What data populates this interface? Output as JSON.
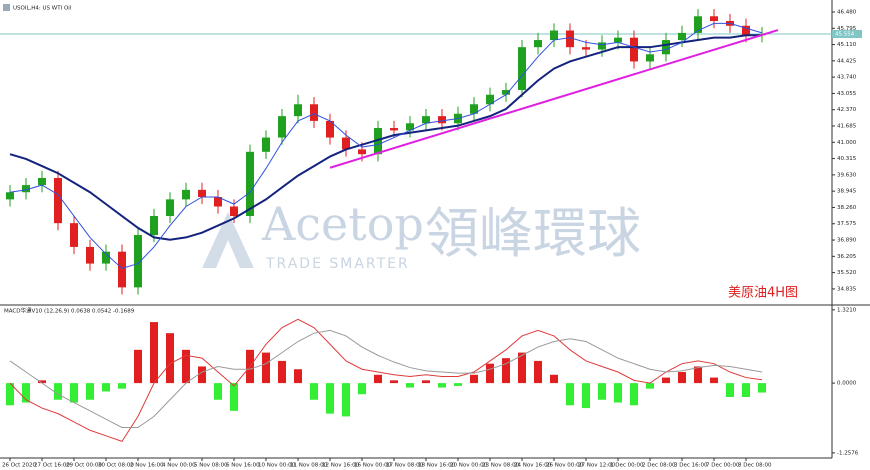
{
  "chart_data": [
    {
      "type": "candlestick",
      "title": "USOIL,H4: US WTI Oil",
      "open": [
        38.6,
        38.9,
        39.2,
        39.5,
        37.6,
        36.6,
        35.9,
        36.4,
        34.9,
        37.1,
        37.9,
        38.6,
        39.0,
        38.7,
        38.3,
        37.9,
        40.6,
        41.2,
        42.1,
        42.6,
        41.9,
        41.2,
        40.7,
        40.5,
        41.6,
        41.5,
        41.8,
        42.1,
        41.8,
        42.2,
        42.6,
        43.0,
        43.2,
        45.0,
        45.3,
        45.7,
        45.0,
        44.9,
        45.2,
        45.4,
        44.4,
        44.7,
        45.3,
        45.6,
        46.3,
        46.1,
        45.9,
        45.5
      ],
      "high": [
        39.2,
        39.5,
        39.8,
        39.8,
        37.9,
        36.9,
        36.7,
        36.7,
        37.4,
        38.2,
        38.9,
        39.3,
        39.3,
        39.0,
        38.6,
        40.9,
        41.5,
        42.4,
        43.0,
        42.9,
        42.2,
        41.5,
        41.0,
        41.9,
        41.9,
        42.1,
        42.4,
        42.4,
        42.5,
        42.9,
        43.3,
        43.5,
        45.3,
        45.6,
        46.0,
        46.0,
        45.3,
        45.5,
        45.7,
        45.7,
        45.0,
        45.6,
        45.9,
        46.6,
        46.6,
        46.4,
        46.2,
        45.85
      ],
      "low": [
        38.3,
        38.6,
        38.9,
        37.3,
        36.3,
        35.6,
        35.6,
        34.6,
        34.6,
        36.8,
        37.6,
        38.3,
        38.4,
        38.0,
        37.6,
        37.6,
        40.3,
        40.9,
        41.8,
        41.6,
        40.9,
        40.4,
        40.2,
        40.2,
        41.2,
        41.2,
        41.5,
        41.5,
        41.5,
        41.9,
        42.3,
        42.7,
        42.9,
        44.7,
        45.0,
        44.7,
        44.6,
        44.6,
        44.9,
        44.1,
        44.1,
        44.4,
        45.0,
        45.3,
        45.8,
        45.6,
        45.2,
        45.2
      ],
      "close": [
        38.9,
        39.2,
        39.5,
        37.6,
        36.6,
        35.9,
        36.4,
        34.9,
        37.1,
        37.9,
        38.6,
        39.0,
        38.7,
        38.3,
        37.9,
        40.6,
        41.2,
        42.1,
        42.6,
        41.9,
        41.2,
        40.7,
        40.5,
        41.6,
        41.5,
        41.8,
        42.1,
        41.8,
        42.2,
        42.6,
        43.0,
        43.2,
        45.0,
        45.3,
        45.7,
        45.0,
        44.9,
        45.2,
        45.4,
        44.4,
        44.7,
        45.3,
        45.6,
        46.3,
        46.1,
        45.9,
        45.5,
        45.55
      ],
      "up_color": "#1fa01f",
      "down_color": "#e02020",
      "series": [
        {
          "type": "line",
          "color": "#13237e",
          "width": 2,
          "values": [
            40.5,
            40.3,
            40.0,
            39.7,
            39.3,
            38.9,
            38.4,
            37.9,
            37.4,
            37.0,
            36.9,
            37.0,
            37.2,
            37.5,
            37.8,
            38.2,
            38.6,
            39.1,
            39.6,
            40.0,
            40.4,
            40.7,
            40.9,
            41.1,
            41.3,
            41.4,
            41.5,
            41.6,
            41.7,
            41.9,
            42.1,
            42.4,
            43.0,
            43.6,
            44.1,
            44.4,
            44.6,
            44.8,
            45.0,
            45.0,
            45.0,
            45.1,
            45.2,
            45.3,
            45.4,
            45.4,
            45.5,
            45.5
          ]
        },
        {
          "type": "line",
          "color": "#3050e0",
          "width": 1,
          "values": [
            38.9,
            39.0,
            39.2,
            38.8,
            37.9,
            37.0,
            36.3,
            35.7,
            35.9,
            36.6,
            37.5,
            38.3,
            38.7,
            38.7,
            38.4,
            38.9,
            39.9,
            41.0,
            41.9,
            42.2,
            41.9,
            41.3,
            40.8,
            40.9,
            41.2,
            41.5,
            41.8,
            41.9,
            42.0,
            42.2,
            42.6,
            43.0,
            43.8,
            44.6,
            45.3,
            45.4,
            45.2,
            45.1,
            45.2,
            45.0,
            44.8,
            44.9,
            45.2,
            45.7,
            46.0,
            46.0,
            45.8,
            45.6
          ]
        }
      ],
      "trendline": {
        "x": [
          20,
          48
        ],
        "y": [
          39.93,
          45.72
        ],
        "color": "#e020e0"
      },
      "price_line": {
        "value": 45.554,
        "color": "#7fc6c6"
      },
      "ylim": [
        34.2,
        46.9
      ],
      "yticks": [
        {
          "value": 46.48,
          "label": "46.480"
        },
        45.795,
        {
          "value": 45.11,
          "label": "45.110"
        },
        44.425,
        {
          "value": 43.74,
          "label": "43.740"
        },
        43.055,
        {
          "value": 42.37,
          "label": "42.370"
        },
        41.685,
        {
          "value": 41,
          "label": "41.000"
        },
        40.315,
        {
          "value": 39.63,
          "label": "39.630"
        },
        38.945,
        {
          "value": 38.26,
          "label": "38.260"
        },
        37.575,
        {
          "value": 36.89,
          "label": "36.890"
        },
        36.205,
        {
          "value": 35.52,
          "label": "35.520"
        },
        34.835
      ],
      "annotation": "美原油4H图"
    },
    {
      "type": "bar",
      "title": "MACD华通V10 (12,26,9) 0.0638 0.0542 -0.1689",
      "categories": [
        "26 Oct 2020",
        null,
        "27 Oct 16:00",
        null,
        "29 Oct 00:00",
        null,
        "30 Oct 08:00",
        null,
        "2 Nov 16:00",
        null,
        "4 Nov 00:00",
        null,
        "5 Nov 08:00",
        null,
        "6 Nov 16:00",
        null,
        "10 Nov 00:00",
        null,
        "11 Nov 08:00",
        null,
        "12 Nov 16:00",
        null,
        "16 Nov 00:00",
        null,
        "17 Nov 08:00",
        null,
        "18 Nov 16:00",
        null,
        "20 Nov 00:00",
        null,
        "23 Nov 08:00",
        null,
        "24 Nov 16:00",
        null,
        "26 Nov 00:00",
        null,
        "27 Nov 12:00",
        null,
        "1 Dec 00:00",
        null,
        "2 Dec 08:00",
        null,
        "3 Dec 16:00",
        null,
        "7 Dec 00:00",
        null,
        "8 Dec 08:00",
        null
      ],
      "values": [
        -0.4,
        -0.35,
        0.05,
        -0.3,
        -0.35,
        -0.3,
        -0.15,
        -0.1,
        0.6,
        1.1,
        0.9,
        0.6,
        0.3,
        -0.3,
        -0.5,
        0.6,
        0.55,
        0.4,
        0.25,
        -0.3,
        -0.55,
        -0.6,
        -0.2,
        0.15,
        0.05,
        -0.08,
        0.05,
        -0.08,
        -0.05,
        0.15,
        0.35,
        0.45,
        0.55,
        0.4,
        0.15,
        -0.4,
        -0.45,
        -0.3,
        -0.35,
        -0.4,
        -0.1,
        0.1,
        0.2,
        0.3,
        0.1,
        -0.25,
        -0.25,
        -0.17
      ],
      "positive_color": "#e02020",
      "negative_color": "#33ee33",
      "series": [
        {
          "type": "line",
          "color": "#e03a3a",
          "values": [
            0.0,
            -0.3,
            -0.45,
            -0.55,
            -0.7,
            -0.85,
            -0.95,
            -1.05,
            -0.6,
            0.0,
            0.35,
            0.5,
            0.45,
            0.2,
            -0.05,
            0.3,
            0.7,
            1.0,
            1.15,
            1.0,
            0.7,
            0.4,
            0.25,
            0.2,
            0.15,
            0.12,
            0.15,
            0.12,
            0.12,
            0.2,
            0.4,
            0.6,
            0.85,
            0.95,
            0.85,
            0.6,
            0.4,
            0.3,
            0.2,
            0.05,
            0.0,
            0.2,
            0.35,
            0.4,
            0.35,
            0.2,
            0.1,
            0.06
          ]
        },
        {
          "type": "line",
          "color": "#9a9a9a",
          "values": [
            0.4,
            0.2,
            0.0,
            -0.2,
            -0.35,
            -0.5,
            -0.65,
            -0.8,
            -0.8,
            -0.6,
            -0.3,
            0.0,
            0.2,
            0.3,
            0.25,
            0.25,
            0.35,
            0.55,
            0.75,
            0.9,
            0.95,
            0.85,
            0.65,
            0.5,
            0.38,
            0.28,
            0.22,
            0.2,
            0.18,
            0.18,
            0.25,
            0.35,
            0.5,
            0.65,
            0.75,
            0.8,
            0.75,
            0.6,
            0.45,
            0.35,
            0.25,
            0.2,
            0.22,
            0.28,
            0.32,
            0.3,
            0.25,
            0.2
          ]
        }
      ],
      "ylim": [
        -1.35,
        1.39
      ],
      "yticks": [
        {
          "value": 1.321,
          "label": "1.3210"
        },
        {
          "value": 0,
          "label": "0.0000"
        },
        {
          "value": -1.2576,
          "label": "-1.2576"
        }
      ]
    }
  ],
  "watermark": {
    "brand": "Acetop",
    "chinese": "領峰環球",
    "tagline": "TRADE SMARTER"
  }
}
